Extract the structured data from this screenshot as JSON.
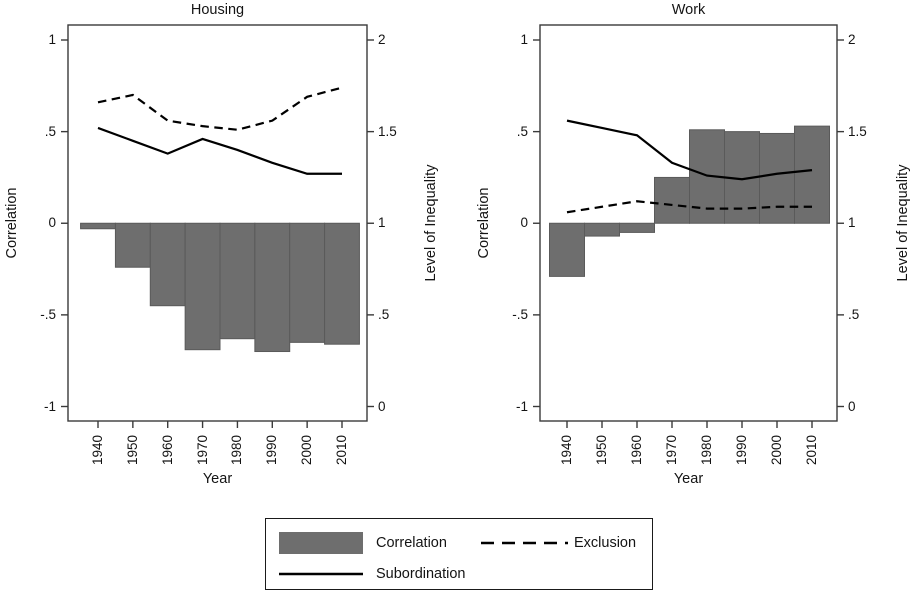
{
  "page": {
    "background": "#ffffff"
  },
  "colors": {
    "bar_fill": "#6e6e6e",
    "bar_edge": "#5a5a5a",
    "line": "#000000",
    "axis": "#3a3a3a",
    "text": "#141414"
  },
  "legend": {
    "items": [
      {
        "label": "Correlation",
        "sample": "bar-swatch"
      },
      {
        "label": "Subordination",
        "sample": "solid-line"
      },
      {
        "label": "Exclusion",
        "sample": "dashed-line"
      }
    ]
  },
  "chart_data": [
    {
      "type": "bar",
      "title": "Housing",
      "xlabel": "Year",
      "ylabel_left": "Correlation",
      "ylabel_right": "Level of Inequality",
      "categories": [
        1940,
        1950,
        1960,
        1970,
        1980,
        1990,
        2000,
        2010
      ],
      "x_tick_labels": [
        "1940",
        "1950",
        "1960",
        "1970",
        "1980",
        "1990",
        "2000",
        "2010"
      ],
      "left_axis": {
        "label": "Correlation",
        "tick_labels": [
          "1",
          ".5",
          "0",
          "-.5",
          "-1"
        ],
        "tick_values": [
          1,
          0.5,
          0,
          -0.5,
          -1
        ],
        "range": [
          -1.08,
          1.08
        ]
      },
      "right_axis": {
        "label": "Level of Inequality",
        "tick_labels": [
          "2",
          "1.5",
          "1",
          ".5",
          "0"
        ],
        "tick_values": [
          2,
          1.5,
          1,
          0.5,
          0
        ],
        "range": [
          -0.08,
          2.08
        ]
      },
      "grid": false,
      "series": [
        {
          "name": "Correlation",
          "kind": "bar",
          "axis": "left",
          "values": [
            -0.03,
            -0.24,
            -0.45,
            -0.69,
            -0.63,
            -0.7,
            -0.65,
            -0.66
          ]
        },
        {
          "name": "Subordination",
          "kind": "line",
          "style": "solid",
          "axis": "right",
          "values": [
            1.52,
            1.45,
            1.38,
            1.46,
            1.4,
            1.33,
            1.27,
            1.27
          ]
        },
        {
          "name": "Exclusion",
          "kind": "line",
          "style": "dashed",
          "axis": "right",
          "values": [
            1.66,
            1.7,
            1.56,
            1.53,
            1.51,
            1.56,
            1.69,
            1.74
          ]
        }
      ]
    },
    {
      "type": "bar",
      "title": "Work",
      "xlabel": "Year",
      "ylabel_left": "Correlation",
      "ylabel_right": "Level of Inequality",
      "categories": [
        1940,
        1950,
        1960,
        1970,
        1980,
        1990,
        2000,
        2010
      ],
      "x_tick_labels": [
        "1940",
        "1950",
        "1960",
        "1970",
        "1980",
        "1990",
        "2000",
        "2010"
      ],
      "left_axis": {
        "label": "Correlation",
        "tick_labels": [
          "1",
          ".5",
          "0",
          "-.5",
          "-1"
        ],
        "tick_values": [
          1,
          0.5,
          0,
          -0.5,
          -1
        ],
        "range": [
          -1.08,
          1.08
        ]
      },
      "right_axis": {
        "label": "Level of Inequality",
        "tick_labels": [
          "2",
          "1.5",
          "1",
          ".5",
          "0"
        ],
        "tick_values": [
          2,
          1.5,
          1,
          0.5,
          0
        ],
        "range": [
          -0.08,
          2.08
        ]
      },
      "grid": false,
      "series": [
        {
          "name": "Correlation",
          "kind": "bar",
          "axis": "left",
          "values": [
            -0.29,
            -0.07,
            -0.05,
            0.25,
            0.51,
            0.5,
            0.49,
            0.53
          ]
        },
        {
          "name": "Subordination",
          "kind": "line",
          "style": "solid",
          "axis": "right",
          "values": [
            1.56,
            1.52,
            1.48,
            1.33,
            1.26,
            1.24,
            1.27,
            1.29
          ]
        },
        {
          "name": "Exclusion",
          "kind": "line",
          "style": "dashed",
          "axis": "right",
          "values": [
            1.06,
            1.09,
            1.12,
            1.1,
            1.08,
            1.08,
            1.09,
            1.09
          ]
        }
      ]
    }
  ]
}
